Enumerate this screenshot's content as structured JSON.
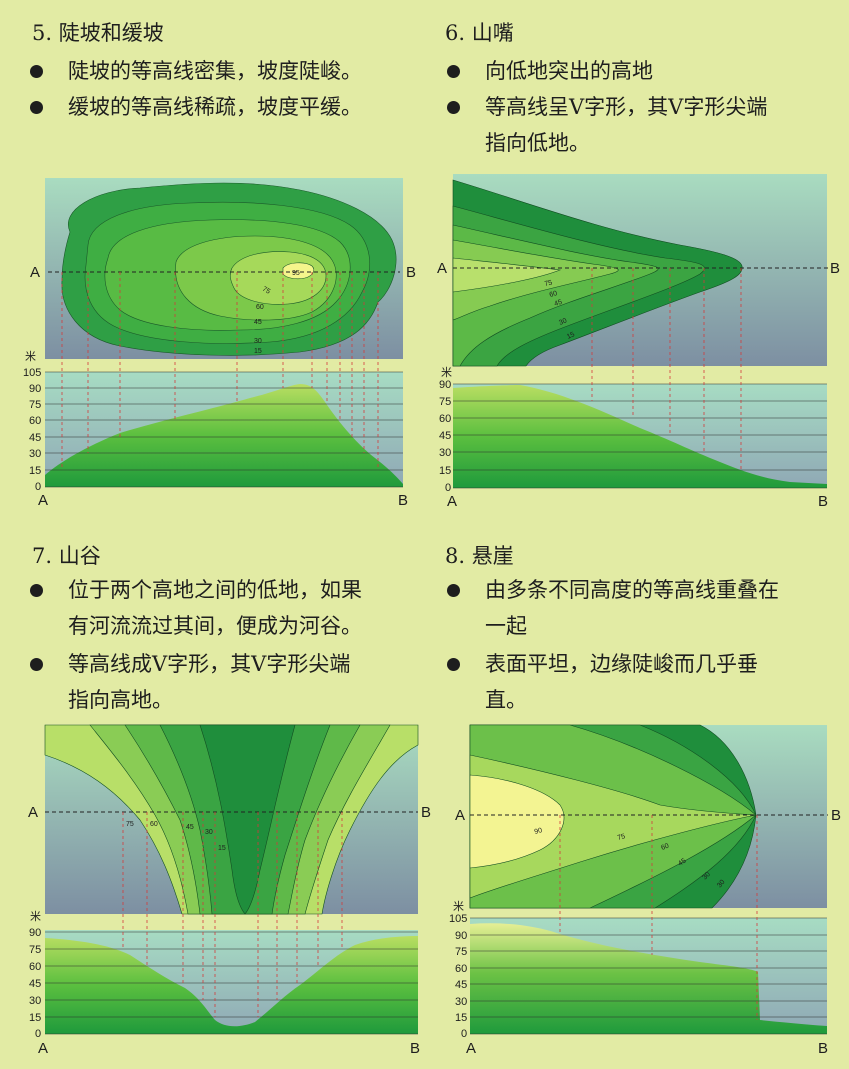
{
  "panels": [
    {
      "title": "5. 陡坡和缓坡",
      "bullets": [
        "陡坡的等高线密集，坡度陡峻。",
        "缓坡的等高线稀疏，坡度平缓。"
      ],
      "y_ticks": [
        "105",
        "90",
        "75",
        "60",
        "45",
        "30",
        "15",
        "0"
      ],
      "contour_labels": [
        "95",
        "75",
        "60",
        "45",
        "30",
        "15"
      ]
    },
    {
      "title": "6. 山嘴",
      "bullets": [
        "向低地突出的高地",
        "等高线呈V字形，其V字形尖端",
        "指向低地。"
      ],
      "y_ticks": [
        "90",
        "75",
        "60",
        "45",
        "30",
        "15",
        "0"
      ],
      "contour_labels": [
        "75",
        "60",
        "45",
        "30",
        "15"
      ]
    },
    {
      "title": "7. 山谷",
      "bullets": [
        "位于两个高地之间的低地，如果",
        "有河流流过其间，便成为河谷。",
        "等高线成V字形，其V字形尖端",
        "指向高地。"
      ],
      "y_ticks": [
        "90",
        "75",
        "60",
        "45",
        "30",
        "15",
        "0"
      ],
      "contour_labels": [
        "75",
        "60",
        "45",
        "30",
        "15"
      ]
    },
    {
      "title": "8. 悬崖",
      "bullets": [
        "由多条不同高度的等高线重叠在",
        "一起",
        "表面平坦，边缘陡峻而几乎垂",
        "直。"
      ],
      "y_ticks": [
        "105",
        "90",
        "75",
        "60",
        "45",
        "30",
        "15",
        "0"
      ],
      "contour_labels": [
        "90",
        "75",
        "60",
        "45",
        "30",
        "30"
      ]
    }
  ],
  "labels": {
    "A": "A",
    "B": "B",
    "unit": "米"
  }
}
